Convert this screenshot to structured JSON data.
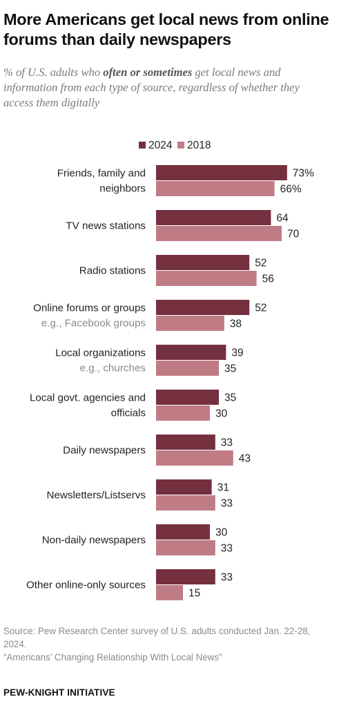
{
  "header": {
    "title": "More Americans get local news from online forums than daily newspapers",
    "subtitle_pre": "% of U.S. adults who ",
    "subtitle_emph": "often or sometimes",
    "subtitle_post": " get local news and information from each type of source, regardless of whether they access them digitally"
  },
  "legend": {
    "items": [
      {
        "label": "2024",
        "color": "#74303f"
      },
      {
        "label": "2018",
        "color": "#c07c85"
      }
    ]
  },
  "chart_data": {
    "type": "bar",
    "orientation": "horizontal",
    "categories": [
      {
        "label": [
          "Friends, family and",
          "neighbors"
        ],
        "sub": ""
      },
      {
        "label": [
          "TV news stations"
        ],
        "sub": ""
      },
      {
        "label": [
          "Radio stations"
        ],
        "sub": ""
      },
      {
        "label": [
          "Online forums or groups"
        ],
        "sub": "e.g., Facebook groups"
      },
      {
        "label": [
          "Local organizations"
        ],
        "sub": "e.g., churches"
      },
      {
        "label": [
          "Local govt. agencies and",
          "officials"
        ],
        "sub": ""
      },
      {
        "label": [
          "Daily newspapers"
        ],
        "sub": ""
      },
      {
        "label": [
          "Newsletters/Listservs"
        ],
        "sub": ""
      },
      {
        "label": [
          "Non-daily newspapers"
        ],
        "sub": ""
      },
      {
        "label": [
          "Other online-only sources"
        ],
        "sub": ""
      }
    ],
    "series": [
      {
        "name": "2024",
        "color": "#74303f",
        "values": [
          73,
          64,
          52,
          52,
          39,
          35,
          33,
          31,
          30,
          33
        ]
      },
      {
        "name": "2018",
        "color": "#c07c85",
        "values": [
          66,
          70,
          56,
          38,
          35,
          30,
          43,
          33,
          33,
          15
        ]
      }
    ],
    "value_labels": [
      [
        "73%",
        "64",
        "52",
        "52",
        "39",
        "35",
        "33",
        "31",
        "30",
        "33"
      ],
      [
        "66%",
        "70",
        "56",
        "38",
        "35",
        "30",
        "43",
        "33",
        "33",
        "15"
      ]
    ]
  },
  "footer": {
    "source": "Source: Pew Research Center survey of U.S. adults conducted Jan. 22-28, 2024.",
    "report": "“Americans’ Changing Relationship With Local News”",
    "org": "PEW-KNIGHT INITIATIVE"
  }
}
